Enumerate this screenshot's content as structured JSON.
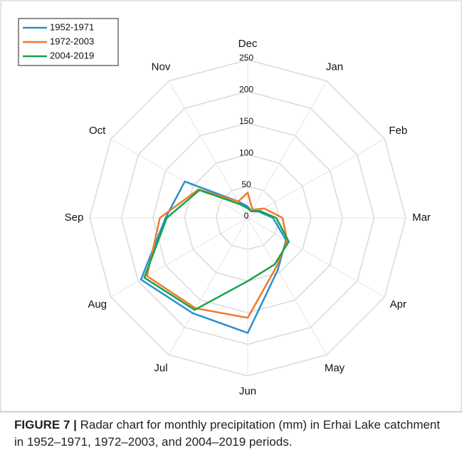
{
  "chart_data": {
    "type": "radar",
    "categories": [
      "Dec",
      "Jan",
      "Feb",
      "Mar",
      "Apr",
      "May",
      "Jun",
      "Jul",
      "Aug",
      "Sep",
      "Oct",
      "Nov"
    ],
    "series": [
      {
        "name": "1952-1971",
        "color": "#2b8fd6",
        "values": [
          18,
          12,
          20,
          40,
          70,
          95,
          182,
          174,
          195,
          130,
          115,
          30
        ]
      },
      {
        "name": "1972-2003",
        "color": "#f07a2a",
        "values": [
          40,
          15,
          30,
          55,
          72,
          90,
          158,
          165,
          184,
          139,
          90,
          30
        ]
      },
      {
        "name": "2004-2019",
        "color": "#16a34a",
        "values": [
          15,
          12,
          22,
          45,
          75,
          85,
          100,
          168,
          189,
          128,
          88,
          25
        ]
      }
    ],
    "ylim": [
      0,
      250
    ],
    "yticks": [
      0,
      50,
      100,
      150,
      200,
      250
    ],
    "grid": true,
    "legend": "top-left"
  },
  "caption": {
    "label": "FIGURE 7 |",
    "text": "Radar chart for monthly precipitation (mm) in Erhai Lake catchment in 1952–1971, 1972–2003, and 2004–2019 periods."
  }
}
